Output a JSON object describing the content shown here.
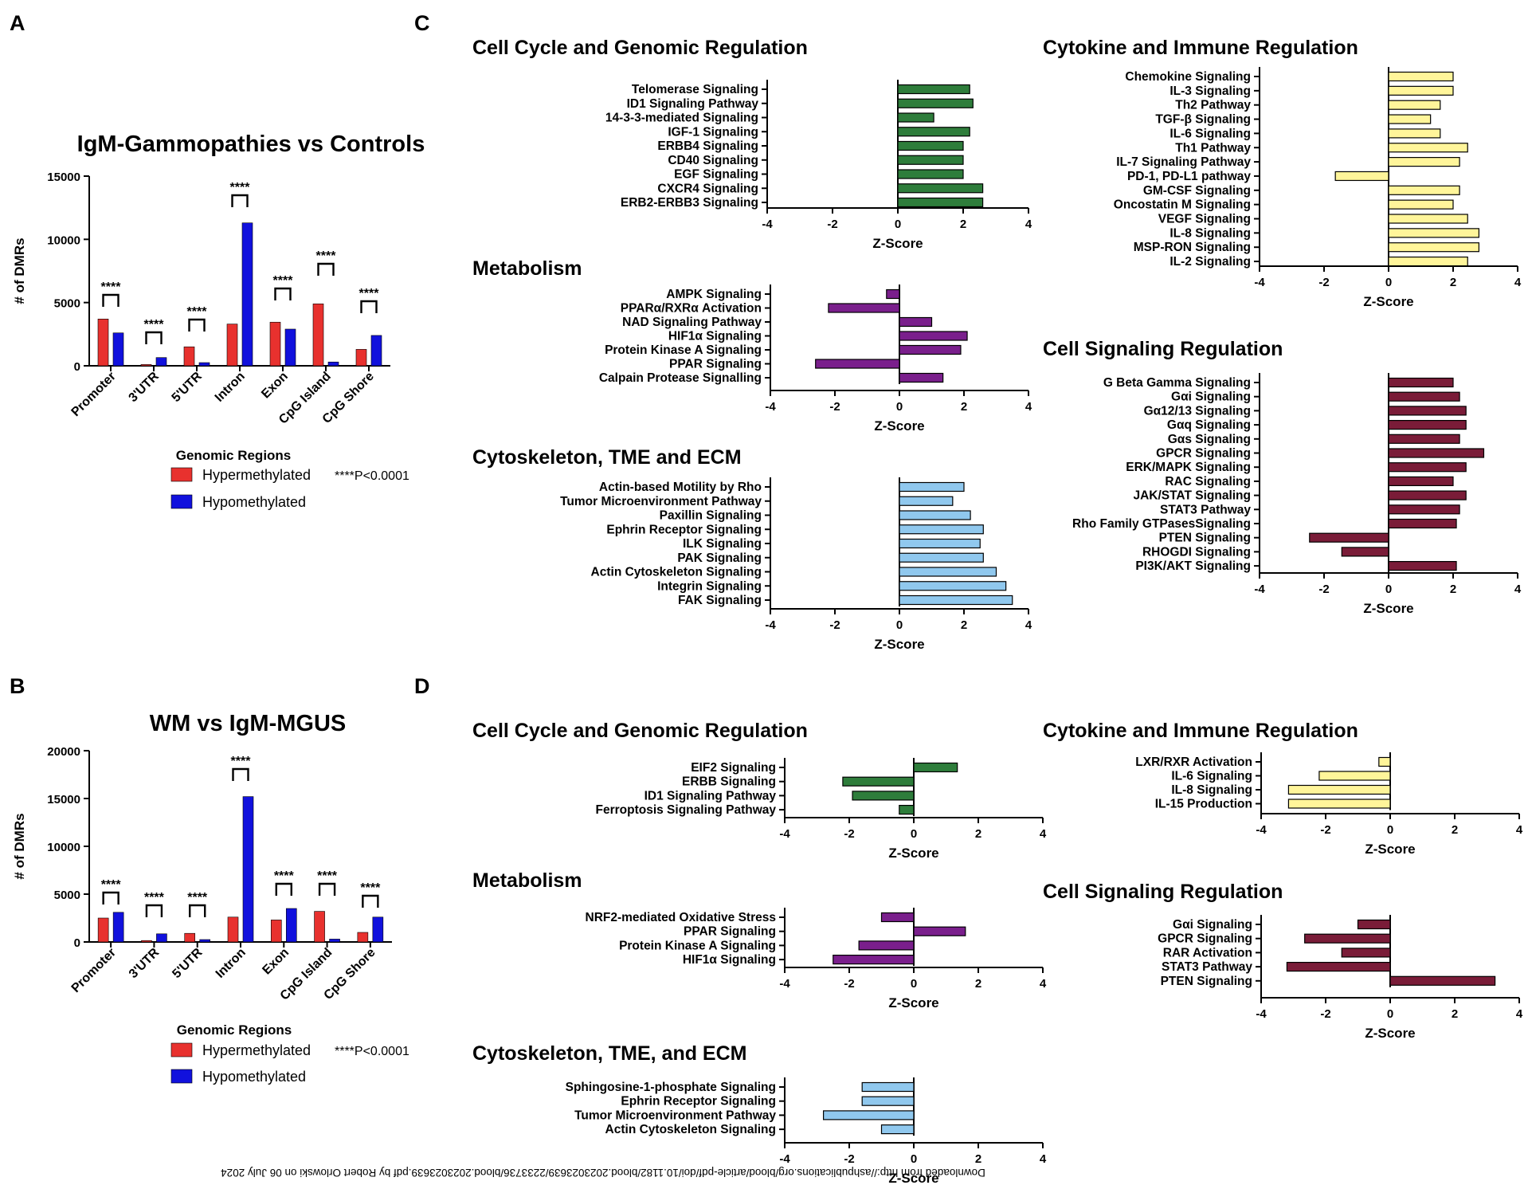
{
  "panels": {
    "A": {
      "letter": "A"
    },
    "B": {
      "letter": "B"
    },
    "C": {
      "letter": "C"
    },
    "D": {
      "letter": "D"
    }
  },
  "colors": {
    "hyper": "#e8312e",
    "hypo": "#1111dd",
    "green": "#2e7d3b",
    "yellow": "#fff59a",
    "purple": "#7a1f8c",
    "lightblue": "#90c8ee",
    "maroon": "#7a1c38"
  },
  "footer": "Downloaded from http://ashpublications.org/blood/article-pdf/doi/10.1182/blood.2023023639/2233736/blood.2023023639.pdf by Robert Orlowski on 06 July 2024",
  "chart_data": [
    {
      "id": "A",
      "type": "bar",
      "title": "IgM-Gammopathies vs Controls",
      "xlabel": "Genomic Regions",
      "ylabel": "# of DMRs",
      "ylim": [
        0,
        15000
      ],
      "yticks": [
        0,
        5000,
        10000,
        15000
      ],
      "categories": [
        "Promoter",
        "3'UTR",
        "5'UTR",
        "Intron",
        "Exon",
        "CpG Island",
        "CpG Shore"
      ],
      "series": [
        {
          "name": "Hypermethylated",
          "values": [
            3700,
            100,
            1500,
            3300,
            3450,
            4900,
            1300
          ]
        },
        {
          "name": "Hypomethylated",
          "values": [
            2600,
            650,
            250,
            11300,
            2900,
            300,
            2400
          ]
        }
      ],
      "annotations": [
        "****",
        "****",
        "****",
        "****",
        "****",
        "****",
        "****"
      ],
      "note": "****P<0.0001"
    },
    {
      "id": "B",
      "type": "bar",
      "title": "WM vs IgM-MGUS",
      "xlabel": "Genomic Regions",
      "ylabel": "# of DMRs",
      "ylim": [
        0,
        20000
      ],
      "yticks": [
        0,
        5000,
        10000,
        15000,
        20000
      ],
      "categories": [
        "Promoter",
        "3'UTR",
        "5'UTR",
        "Intron",
        "Exon",
        "CpG Island",
        "CpG Shore"
      ],
      "series": [
        {
          "name": "Hypermethylated",
          "values": [
            2500,
            150,
            900,
            2600,
            2300,
            3200,
            1000
          ]
        },
        {
          "name": "Hypomethylated",
          "values": [
            3100,
            850,
            250,
            15200,
            3500,
            300,
            2600
          ]
        }
      ],
      "annotations": [
        "****",
        "****",
        "****",
        "****",
        "****",
        "****",
        "****"
      ],
      "note": "****P<0.0001"
    },
    {
      "id": "C-cycle",
      "type": "bar",
      "orientation": "horizontal",
      "title": "Cell Cycle and Genomic Regulation",
      "xlabel": "Z-Score",
      "xlim": [
        -4,
        4
      ],
      "xticks": [
        -4,
        -2,
        0,
        2,
        4
      ],
      "categories": [
        "Telomerase Signaling",
        "ID1 Signaling Pathway",
        "14-3-3-mediated Signaling",
        "IGF-1 Signaling",
        "ERBB4 Signaling",
        "CD40 Signaling",
        "EGF Signaling",
        "CXCR4 Signaling",
        "ERB2-ERBB3 Signaling"
      ],
      "values": [
        2.2,
        2.3,
        1.1,
        2.2,
        2.0,
        2.0,
        2.0,
        2.6,
        2.6
      ]
    },
    {
      "id": "C-metab",
      "type": "bar",
      "orientation": "horizontal",
      "title": "Metabolism",
      "xlabel": "Z-Score",
      "xlim": [
        -4,
        4
      ],
      "xticks": [
        -4,
        -2,
        0,
        2,
        4
      ],
      "categories": [
        "AMPK Signaling",
        "PPARα/RXRα Activation",
        "NAD Signaling Pathway",
        "HIF1α Signaling",
        "Protein Kinase A Signaling",
        "PPAR Signaling",
        "Calpain Protease Signalling"
      ],
      "values": [
        -0.4,
        -2.2,
        1.0,
        2.1,
        1.9,
        -2.6,
        1.35
      ]
    },
    {
      "id": "C-cyto",
      "type": "bar",
      "orientation": "horizontal",
      "title": "Cytoskeleton, TME and ECM",
      "xlabel": "Z-Score",
      "xlim": [
        -4,
        4
      ],
      "xticks": [
        -4,
        -2,
        0,
        2,
        4
      ],
      "categories": [
        "Actin-based Motility by Rho",
        "Tumor Microenvironment Pathway",
        "Paxillin Signaling",
        "Ephrin Receptor Signaling",
        "ILK Signaling",
        "PAK Signaling",
        "Actin Cytoskeleton Signaling",
        "Integrin Signaling",
        "FAK Signaling"
      ],
      "values": [
        2.0,
        1.65,
        2.2,
        2.6,
        2.5,
        2.6,
        3.0,
        3.3,
        3.5
      ]
    },
    {
      "id": "C-immune",
      "type": "bar",
      "orientation": "horizontal",
      "title": "Cytokine and Immune Regulation",
      "xlabel": "Z-Score",
      "xlim": [
        -4,
        4
      ],
      "xticks": [
        -4,
        -2,
        0,
        2,
        4
      ],
      "categories": [
        "Chemokine Signaling",
        "IL-3 Signaling",
        "Th2 Pathway",
        "TGF-β Signaling",
        "IL-6 Signaling",
        "Th1 Pathway",
        "IL-7 Signaling Pathway",
        "PD-1, PD-L1 pathway",
        "GM-CSF Signaling",
        "Oncostatin M Signaling",
        "VEGF Signaling",
        "IL-8 Signaling",
        "MSP-RON Signaling",
        "IL-2 Signaling"
      ],
      "values": [
        2.0,
        2.0,
        1.6,
        1.3,
        1.6,
        2.45,
        2.2,
        -1.65,
        2.2,
        2.0,
        2.45,
        2.8,
        2.8,
        2.45
      ]
    },
    {
      "id": "C-signal",
      "type": "bar",
      "orientation": "horizontal",
      "title": "Cell Signaling Regulation",
      "xlabel": "Z-Score",
      "xlim": [
        -4,
        4
      ],
      "xticks": [
        -4,
        -2,
        0,
        2,
        4
      ],
      "categories": [
        "G Beta Gamma Signaling",
        "Gαi Signaling",
        "Gα12/13 Signaling",
        "Gαq Signaling",
        "Gαs Signaling",
        "GPCR Signaling",
        "ERK/MAPK Signaling",
        "RAC Signaling",
        "JAK/STAT Signaling",
        "STAT3 Pathway",
        "Rho Family GTPasesSignaling",
        "PTEN Signaling",
        "RHOGDI Signaling",
        "PI3K/AKT Signaling"
      ],
      "values": [
        2.0,
        2.2,
        2.4,
        2.4,
        2.2,
        2.95,
        2.4,
        2.0,
        2.4,
        2.2,
        2.1,
        -2.45,
        -1.45,
        2.1
      ]
    },
    {
      "id": "D-cycle",
      "type": "bar",
      "orientation": "horizontal",
      "title": "Cell Cycle and Genomic Regulation",
      "xlabel": "Z-Score",
      "xlim": [
        -4,
        4
      ],
      "xticks": [
        -4,
        -2,
        0,
        2,
        4
      ],
      "categories": [
        "EIF2 Signaling",
        "ERBB Signaling",
        "ID1 Signaling Pathway",
        "Ferroptosis Signaling Pathway"
      ],
      "values": [
        1.35,
        -2.2,
        -1.9,
        -0.45
      ]
    },
    {
      "id": "D-metab",
      "type": "bar",
      "orientation": "horizontal",
      "title": "Metabolism",
      "xlabel": "Z-Score",
      "xlim": [
        -4,
        4
      ],
      "xticks": [
        -4,
        -2,
        0,
        2,
        4
      ],
      "categories": [
        "NRF2-mediated Oxidative Stress",
        "PPAR Signaling",
        "Protein Kinase A Signaling",
        "HIF1α Signaling"
      ],
      "values": [
        -1.0,
        1.6,
        -1.7,
        -2.5
      ]
    },
    {
      "id": "D-cyto",
      "type": "bar",
      "orientation": "horizontal",
      "title": "Cytoskeleton, TME, and ECM",
      "xlabel": "Z-Score",
      "xlim": [
        -4,
        4
      ],
      "xticks": [
        -4,
        -2,
        0,
        2,
        4
      ],
      "categories": [
        "Sphingosine-1-phosphate Signaling",
        "Ephrin Receptor Signaling",
        "Tumor Microenvironment Pathway",
        "Actin Cytoskeleton Signaling"
      ],
      "values": [
        -1.6,
        -1.6,
        -2.8,
        -1.0
      ]
    },
    {
      "id": "D-immune",
      "type": "bar",
      "orientation": "horizontal",
      "title": "Cytokine and Immune Regulation",
      "xlabel": "Z-Score",
      "xlim": [
        -4,
        4
      ],
      "xticks": [
        -4,
        -2,
        0,
        2,
        4
      ],
      "categories": [
        "LXR/RXR Activation",
        "IL-6 Signaling",
        "IL-8 Signaling",
        "IL-15 Production"
      ],
      "values": [
        -0.35,
        -2.2,
        -3.15,
        -3.15
      ]
    },
    {
      "id": "D-signal",
      "type": "bar",
      "orientation": "horizontal",
      "title": "Cell Signaling Regulation",
      "xlabel": "Z-Score",
      "xlim": [
        -4,
        4
      ],
      "xticks": [
        -4,
        -2,
        0,
        2,
        4
      ],
      "categories": [
        "Gαi Signaling",
        "GPCR Signaling",
        "RAR Activation",
        "STAT3 Pathway",
        "PTEN Signaling"
      ],
      "values": [
        -1.0,
        -2.65,
        -1.5,
        -3.2,
        3.25
      ]
    }
  ]
}
